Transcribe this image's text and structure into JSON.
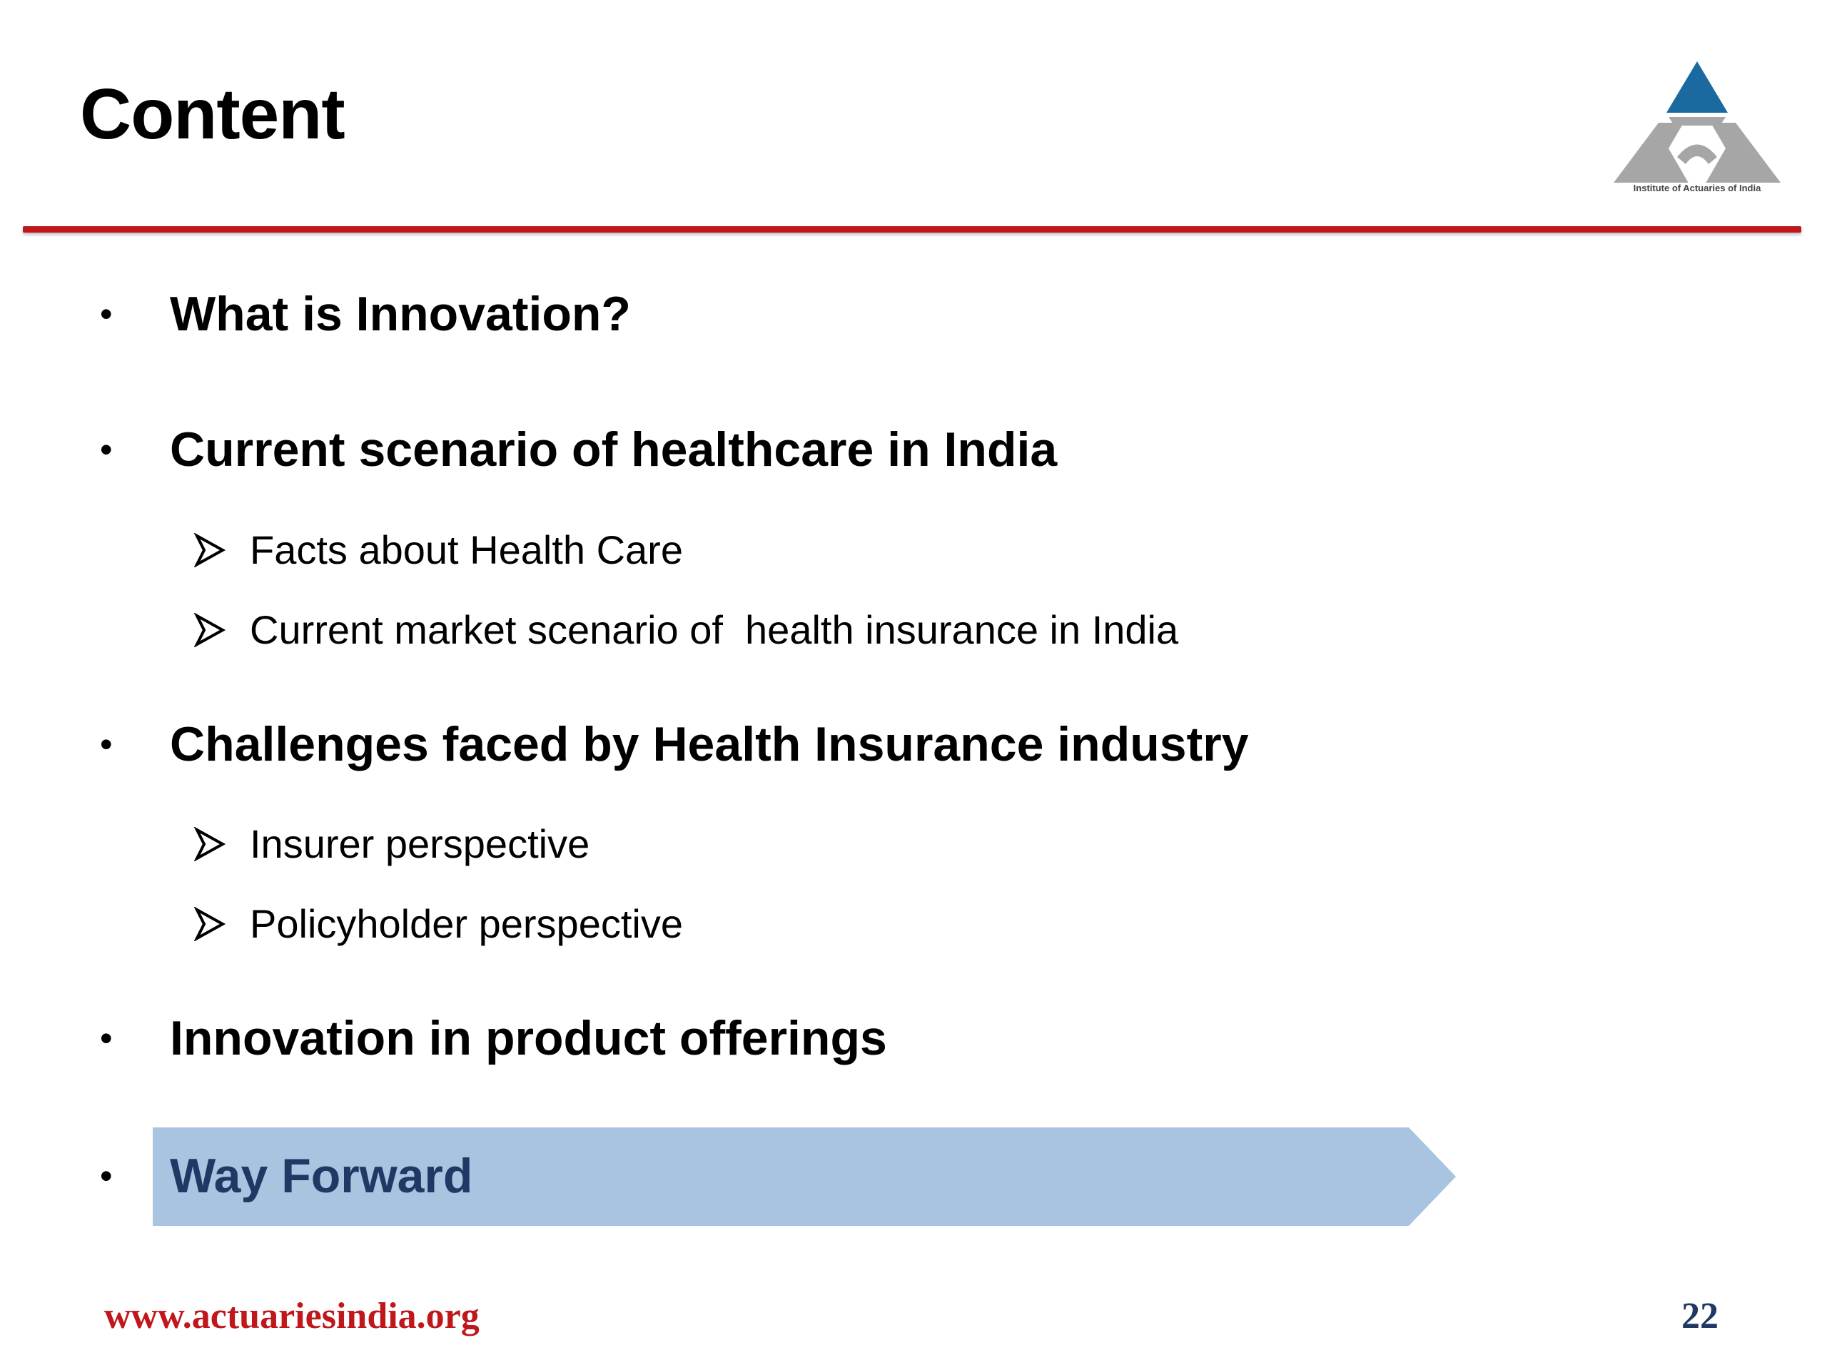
{
  "slide": {
    "title": "Content",
    "logo": {
      "icon": "institute-of-actuaries-triangle-logo",
      "caption": "Institute of Actuaries of India",
      "colors": {
        "top": "#1a6aa0",
        "body": "#a6a6a6"
      }
    },
    "accent_color": "#c0171c",
    "highlight_color": "#a9c4e0",
    "items": [
      {
        "label": "What is Innovation?"
      },
      {
        "label": "Current scenario of healthcare in India",
        "subitems": [
          {
            "label": "Facts about Health Care"
          },
          {
            "label": "Current market scenario of  health insurance in India"
          }
        ]
      },
      {
        "label": "Challenges faced by Health Insurance industry",
        "subitems": [
          {
            "label": "Insurer perspective"
          },
          {
            "label": "Policyholder perspective"
          }
        ]
      },
      {
        "label": "Innovation in product offerings"
      },
      {
        "label": "Way Forward",
        "highlighted": true
      }
    ],
    "bullet_glyph": "•",
    "sub_bullet_icon": "arrowhead-bullet-icon",
    "footer": {
      "url": "www.actuariesindia.org",
      "page_number": "22"
    }
  }
}
